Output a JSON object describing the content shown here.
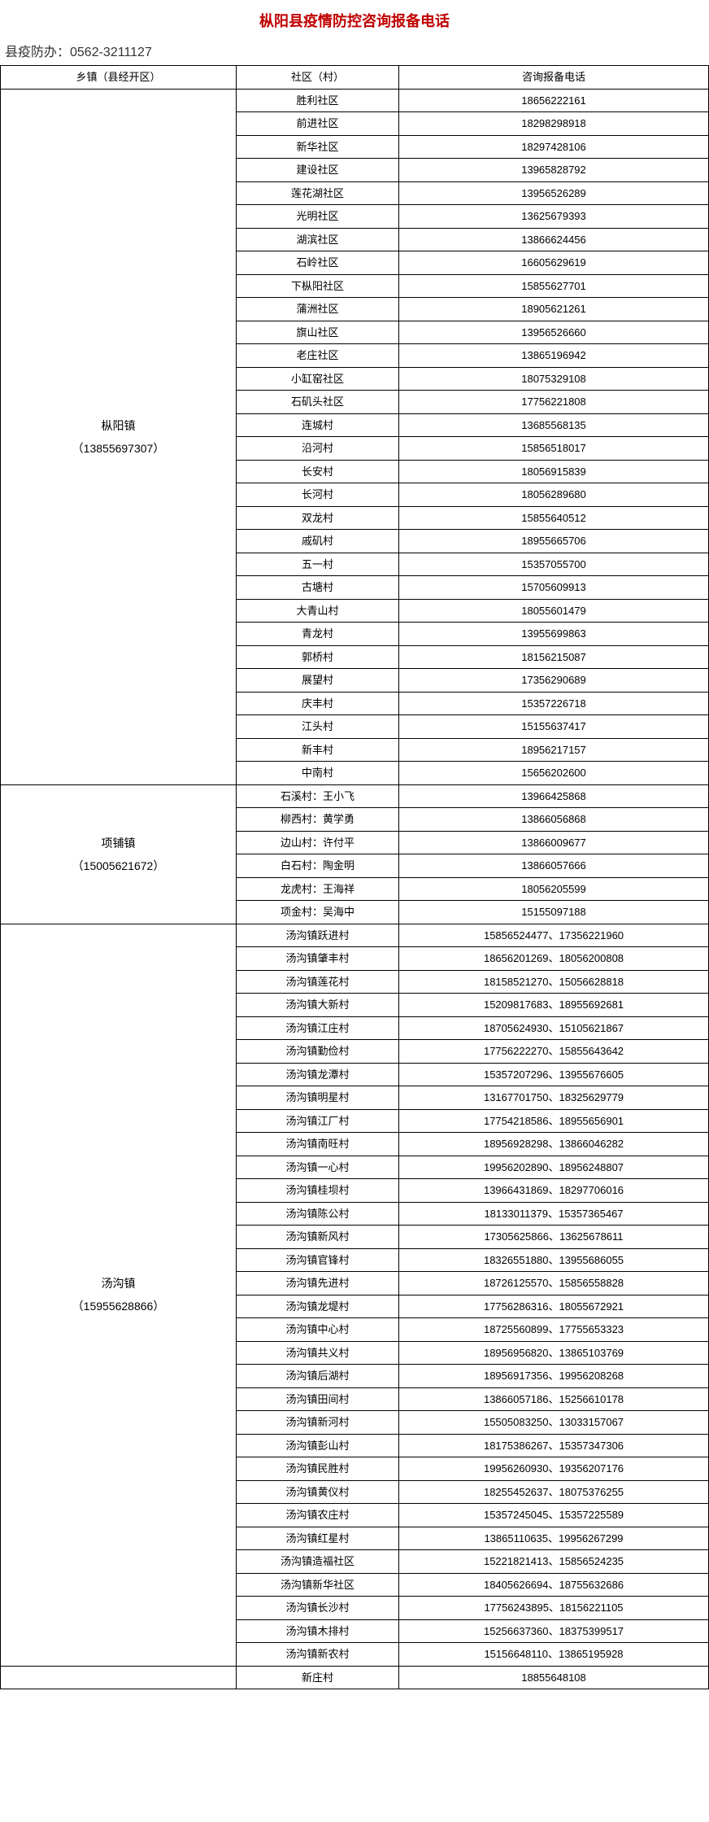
{
  "title": "枞阳县疫情防控咨询报备电话",
  "title_color": "#c00000",
  "subtitle": "县疫防办：0562-3211127",
  "headers": {
    "town": "乡镇（县经开区）",
    "village": "社区（村）",
    "phone": "咨询报备电话"
  },
  "towns": [
    {
      "name": "枞阳镇",
      "phone": "（13855697307）",
      "rows": [
        {
          "village": "胜利社区",
          "phone": "18656222161"
        },
        {
          "village": "前进社区",
          "phone": "18298298918"
        },
        {
          "village": "新华社区",
          "phone": "18297428106"
        },
        {
          "village": "建设社区",
          "phone": "13965828792"
        },
        {
          "village": "莲花湖社区",
          "phone": "13956526289"
        },
        {
          "village": "光明社区",
          "phone": "13625679393"
        },
        {
          "village": "湖滨社区",
          "phone": "13866624456"
        },
        {
          "village": "石岭社区",
          "phone": "16605629619"
        },
        {
          "village": "下枞阳社区",
          "phone": "15855627701"
        },
        {
          "village": "蒲洲社区",
          "phone": "18905621261"
        },
        {
          "village": "旗山社区",
          "phone": "13956526660"
        },
        {
          "village": "老庄社区",
          "phone": "13865196942"
        },
        {
          "village": "小缸窑社区",
          "phone": "18075329108"
        },
        {
          "village": "石矶头社区",
          "phone": "17756221808"
        },
        {
          "village": "连城村",
          "phone": "13685568135"
        },
        {
          "village": "沿河村",
          "phone": "15856518017"
        },
        {
          "village": "长安村",
          "phone": "18056915839"
        },
        {
          "village": "长河村",
          "phone": "18056289680"
        },
        {
          "village": "双龙村",
          "phone": "15855640512"
        },
        {
          "village": "戚矶村",
          "phone": "18955665706"
        },
        {
          "village": "五一村",
          "phone": "15357055700"
        },
        {
          "village": "古塘村",
          "phone": "15705609913"
        },
        {
          "village": "大青山村",
          "phone": "18055601479"
        },
        {
          "village": "青龙村",
          "phone": "13955699863"
        },
        {
          "village": "郭桥村",
          "phone": "18156215087"
        },
        {
          "village": "展望村",
          "phone": "17356290689"
        },
        {
          "village": "庆丰村",
          "phone": "15357226718"
        },
        {
          "village": "江头村",
          "phone": "15155637417"
        },
        {
          "village": "新丰村",
          "phone": "18956217157"
        },
        {
          "village": "中南村",
          "phone": "15656202600"
        }
      ]
    },
    {
      "name": "项铺镇",
      "phone": "（15005621672）",
      "rows": [
        {
          "village": "石溪村：王小飞",
          "phone": "13966425868"
        },
        {
          "village": "柳西村：黄学勇",
          "phone": "13866056868"
        },
        {
          "village": "边山村：许付平",
          "phone": "13866009677"
        },
        {
          "village": "白石村：陶金明",
          "phone": "13866057666"
        },
        {
          "village": "龙虎村：王海祥",
          "phone": "18056205599"
        },
        {
          "village": "项金村：吴海中",
          "phone": "15155097188"
        }
      ]
    },
    {
      "name": "汤沟镇",
      "phone": "（15955628866）",
      "rows": [
        {
          "village": "汤沟镇跃进村",
          "phone": "15856524477、17356221960"
        },
        {
          "village": "汤沟镇肇丰村",
          "phone": "18656201269、18056200808"
        },
        {
          "village": "汤沟镇莲花村",
          "phone": "18158521270、15056628818"
        },
        {
          "village": "汤沟镇大新村",
          "phone": "15209817683、18955692681"
        },
        {
          "village": "汤沟镇江庄村",
          "phone": "18705624930、15105621867"
        },
        {
          "village": "汤沟镇勤俭村",
          "phone": "17756222270、15855643642"
        },
        {
          "village": "汤沟镇龙潭村",
          "phone": "15357207296、13955676605"
        },
        {
          "village": "汤沟镇明星村",
          "phone": "13167701750、18325629779"
        },
        {
          "village": "汤沟镇江厂村",
          "phone": "17754218586、18955656901"
        },
        {
          "village": "汤沟镇南旺村",
          "phone": "18956928298、13866046282"
        },
        {
          "village": "汤沟镇一心村",
          "phone": "19956202890、18956248807"
        },
        {
          "village": "汤沟镇桂坝村",
          "phone": "13966431869、18297706016"
        },
        {
          "village": "汤沟镇陈公村",
          "phone": "18133011379、15357365467"
        },
        {
          "village": "汤沟镇新风村",
          "phone": "17305625866、13625678611"
        },
        {
          "village": "汤沟镇官锋村",
          "phone": "18326551880、13955686055"
        },
        {
          "village": "汤沟镇先进村",
          "phone": "18726125570、15856558828"
        },
        {
          "village": "汤沟镇龙堤村",
          "phone": "17756286316、18055672921"
        },
        {
          "village": "汤沟镇中心村",
          "phone": "18725560899、17755653323"
        },
        {
          "village": "汤沟镇共义村",
          "phone": "18956956820、13865103769"
        },
        {
          "village": "汤沟镇后湖村",
          "phone": "18956917356、19956208268"
        },
        {
          "village": "汤沟镇田间村",
          "phone": "13866057186、15256610178"
        },
        {
          "village": "汤沟镇新河村",
          "phone": "15505083250、13033157067"
        },
        {
          "village": "汤沟镇彭山村",
          "phone": "18175386267、15357347306"
        },
        {
          "village": "汤沟镇民胜村",
          "phone": "19956260930、19356207176"
        },
        {
          "village": "汤沟镇黄仪村",
          "phone": "18255452637、18075376255"
        },
        {
          "village": "汤沟镇农庄村",
          "phone": "15357245045、15357225589"
        },
        {
          "village": "汤沟镇红星村",
          "phone": "13865110635、19956267299"
        },
        {
          "village": "汤沟镇造福社区",
          "phone": "15221821413、15856524235"
        },
        {
          "village": "汤沟镇新华社区",
          "phone": "18405626694、18755632686"
        },
        {
          "village": "汤沟镇长沙村",
          "phone": "17756243895、18156221105"
        },
        {
          "village": "汤沟镇木排村",
          "phone": "15256637360、18375399517"
        },
        {
          "village": "汤沟镇新农村",
          "phone": "15156648110、13865195928"
        }
      ]
    },
    {
      "name": "",
      "phone": "",
      "rows": [
        {
          "village": "新庄村",
          "phone": "18855648108"
        }
      ]
    }
  ]
}
